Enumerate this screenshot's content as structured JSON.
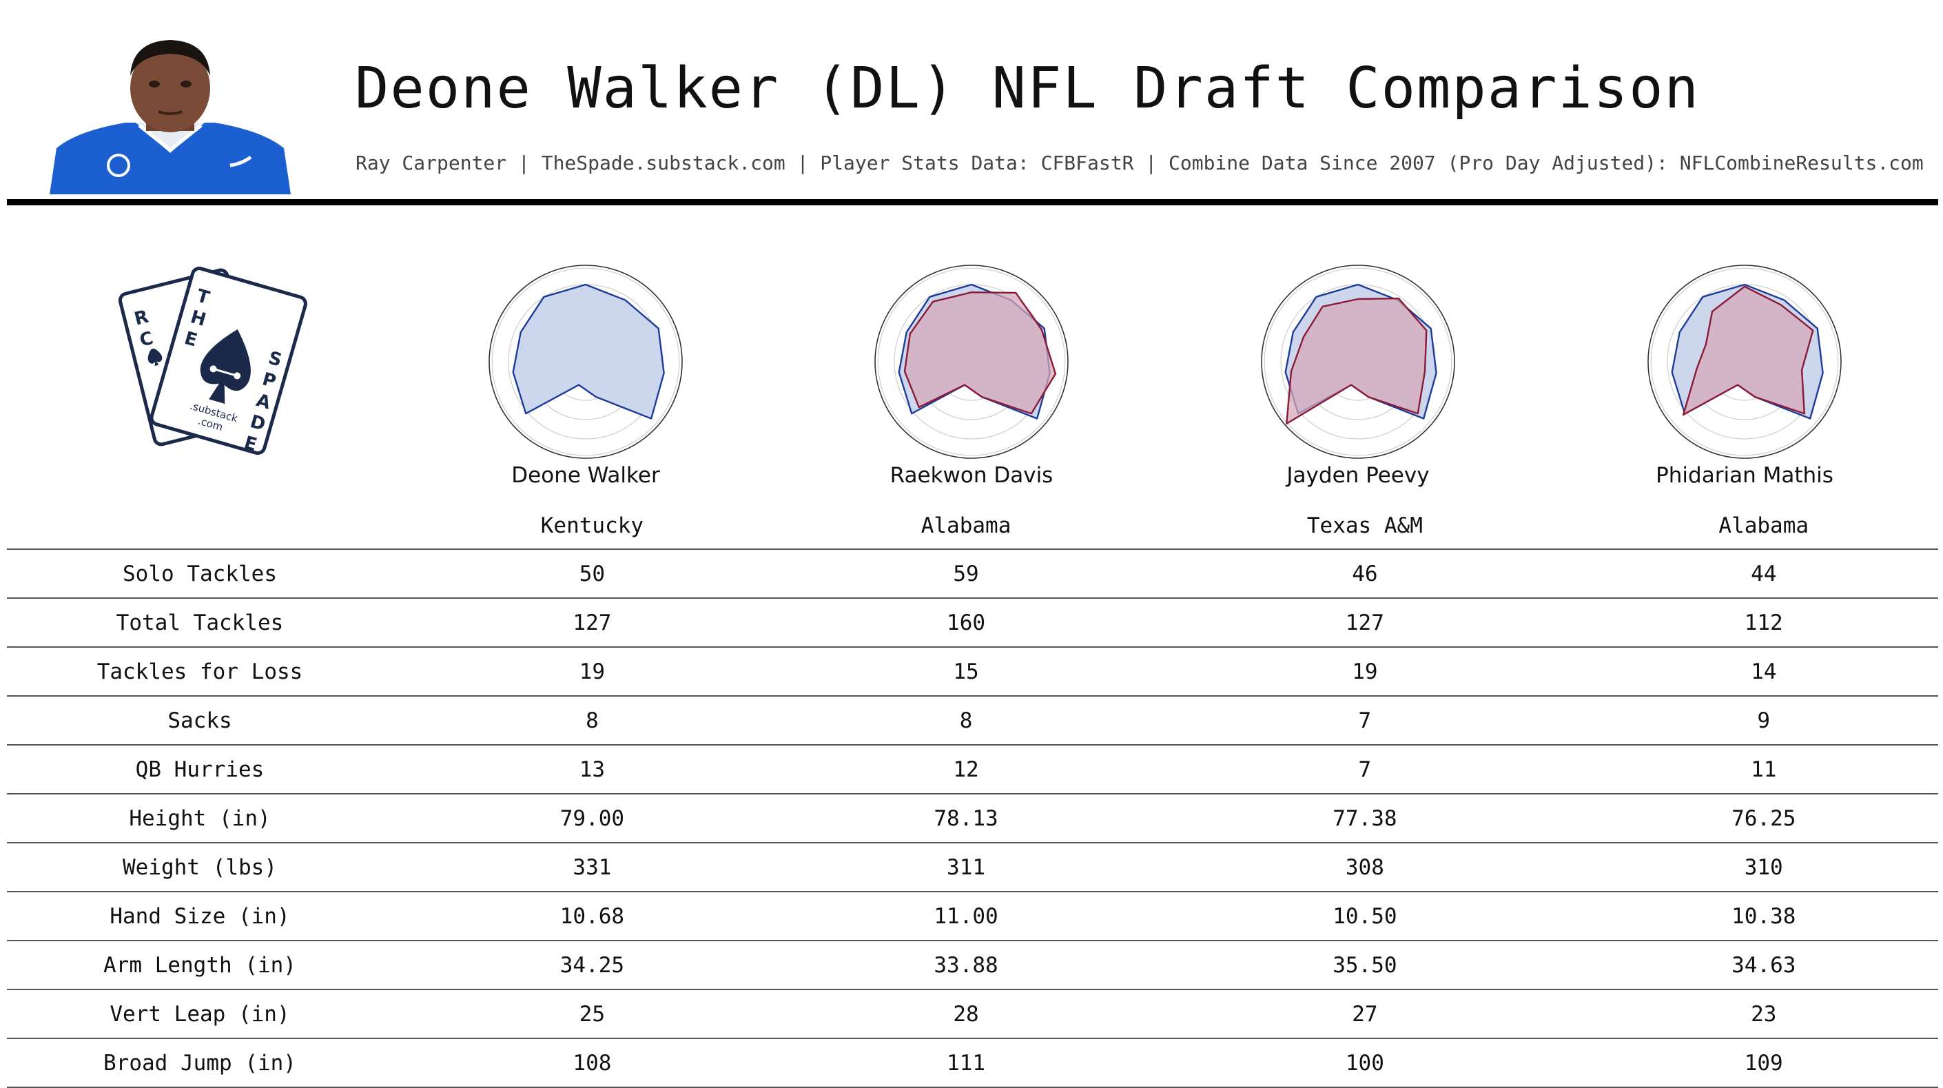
{
  "header": {
    "title": "Deone Walker (DL) NFL Draft Comparison",
    "subtitle": "Ray Carpenter | TheSpade.substack.com | Player Stats Data: CFBFastR | Combine Data Since 2007 (Pro Day Adjusted): NFLCombineResults.com"
  },
  "logo": {
    "card_back_letters": [
      "R",
      "C"
    ],
    "card_front_letters": [
      "T",
      "H",
      "E",
      "S",
      "P",
      "A",
      "D",
      "E"
    ],
    "substack_text": ".substack",
    "com_text": ".com"
  },
  "colors": {
    "primary_fill": "#c9d4ec",
    "primary_stroke": "#1e3c9a",
    "comp_fill": "#d5a7b8",
    "comp_stroke": "#8b1a35",
    "navy": "#1b2a4a"
  },
  "players": [
    {
      "name": "Deone Walker",
      "school": "Kentucky"
    },
    {
      "name": "Raekwon Davis",
      "school": "Alabama"
    },
    {
      "name": "Jayden Peevy",
      "school": "Texas A&M"
    },
    {
      "name": "Phidarian Mathis",
      "school": "Alabama"
    }
  ],
  "table": {
    "rows": [
      {
        "label": "Solo Tackles",
        "values": [
          "50",
          "59",
          "46",
          "44"
        ]
      },
      {
        "label": "Total Tackles",
        "values": [
          "127",
          "160",
          "127",
          "112"
        ]
      },
      {
        "label": "Tackles for Loss",
        "values": [
          "19",
          "15",
          "19",
          "14"
        ]
      },
      {
        "label": "Sacks",
        "values": [
          "8",
          "8",
          "7",
          "9"
        ]
      },
      {
        "label": "QB Hurries",
        "values": [
          "13",
          "12",
          "7",
          "11"
        ]
      },
      {
        "label": "Height (in)",
        "values": [
          "79.00",
          "78.13",
          "77.38",
          "76.25"
        ]
      },
      {
        "label": "Weight (lbs)",
        "values": [
          "331",
          "311",
          "308",
          "310"
        ]
      },
      {
        "label": "Hand Size (in)",
        "values": [
          "10.68",
          "11.00",
          "10.50",
          "10.38"
        ]
      },
      {
        "label": "Arm Length (in)",
        "values": [
          "34.25",
          "33.88",
          "35.50",
          "34.63"
        ]
      },
      {
        "label": "Vert Leap (in)",
        "values": [
          "25",
          "28",
          "27",
          "23"
        ]
      },
      {
        "label": "Broad Jump (in)",
        "values": [
          "108",
          "111",
          "100",
          "109"
        ]
      }
    ]
  },
  "chart_data": {
    "type": "radar",
    "categories": [
      "Solo Tackles",
      "Total Tackles",
      "Tackles for Loss",
      "Sacks",
      "QB Hurries",
      "Height (in)",
      "Weight (lbs)",
      "Hand Size (in)",
      "Arm Length (in)",
      "Vert Leap (in)",
      "Broad Jump (in)"
    ],
    "ylim": [
      0,
      1
    ],
    "radars": [
      {
        "player": "Deone Walker",
        "series": [
          {
            "values": [
              0.8,
              0.76,
              0.83,
              0.82,
              0.9,
              0.38,
              0.25,
              0.82,
              0.76,
              0.74,
              0.8
            ]
          }
        ]
      },
      {
        "player": "Raekwon Davis",
        "series": [
          {
            "values": [
              0.8,
              0.76,
              0.83,
              0.82,
              0.9,
              0.38,
              0.25,
              0.82,
              0.76,
              0.74,
              0.8
            ]
          },
          {
            "values": [
              0.72,
              0.85,
              0.8,
              0.88,
              0.82,
              0.38,
              0.25,
              0.72,
              0.7,
              0.7,
              0.74
            ]
          }
        ]
      },
      {
        "player": "Jayden Peevy",
        "series": [
          {
            "values": [
              0.8,
              0.76,
              0.83,
              0.82,
              0.9,
              0.38,
              0.25,
              0.82,
              0.76,
              0.74,
              0.8
            ]
          },
          {
            "values": [
              0.65,
              0.78,
              0.78,
              0.7,
              0.82,
              0.38,
              0.25,
              0.98,
              0.7,
              0.62,
              0.68
            ]
          }
        ]
      },
      {
        "player": "Phidarian Mathis",
        "series": [
          {
            "values": [
              0.8,
              0.76,
              0.83,
              0.82,
              0.9,
              0.38,
              0.25,
              0.82,
              0.76,
              0.74,
              0.8
            ]
          },
          {
            "values": [
              0.78,
              0.7,
              0.78,
              0.6,
              0.82,
              0.38,
              0.25,
              0.84,
              0.5,
              0.44,
              0.62
            ]
          }
        ]
      }
    ]
  }
}
